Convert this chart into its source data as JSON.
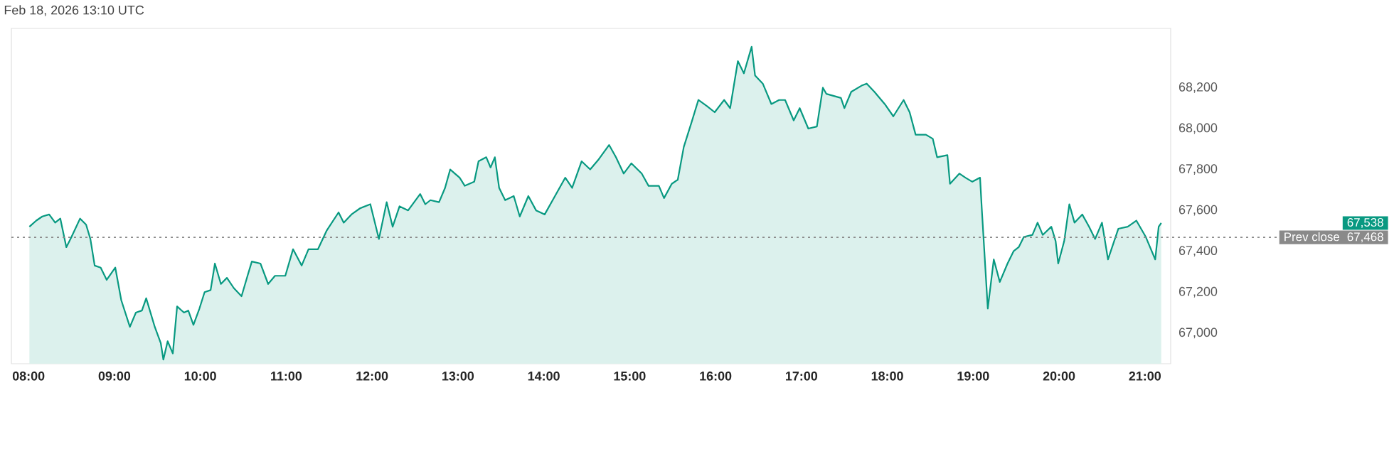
{
  "chart_data": {
    "type": "area",
    "title": "Feb 18, 2026 13:10 UTC",
    "color": "#089981",
    "x": [
      8.01,
      8.09,
      8.16,
      8.24,
      8.31,
      8.37,
      8.44,
      8.5,
      8.6,
      8.67,
      8.72,
      8.77,
      8.84,
      8.91,
      9.01,
      9.08,
      9.18,
      9.25,
      9.32,
      9.37,
      9.47,
      9.54,
      9.57,
      9.62,
      9.68,
      9.73,
      9.81,
      9.86,
      9.92,
      9.99,
      10.05,
      10.12,
      10.17,
      10.24,
      10.31,
      10.39,
      10.48,
      10.55,
      10.6,
      10.7,
      10.79,
      10.87,
      10.99,
      11.08,
      11.18,
      11.26,
      11.37,
      11.47,
      11.61,
      11.67,
      11.76,
      11.86,
      11.98,
      12.08,
      12.17,
      12.24,
      12.32,
      12.42,
      12.56,
      12.62,
      12.68,
      12.78,
      12.85,
      12.91,
      13.02,
      13.08,
      13.19,
      13.24,
      13.33,
      13.38,
      13.43,
      13.48,
      13.55,
      13.65,
      13.72,
      13.82,
      13.91,
      14.01,
      14.13,
      14.25,
      14.33,
      14.44,
      14.54,
      14.64,
      14.76,
      14.84,
      14.93,
      15.02,
      15.14,
      15.22,
      15.34,
      15.4,
      15.49,
      15.56,
      15.63,
      15.72,
      15.8,
      15.9,
      15.99,
      16.1,
      16.17,
      16.26,
      16.33,
      16.42,
      16.46,
      16.55,
      16.65,
      16.74,
      16.81,
      16.91,
      16.98,
      17.08,
      17.18,
      17.25,
      17.29,
      17.46,
      17.5,
      17.58,
      17.7,
      17.76,
      17.85,
      17.97,
      18.07,
      18.19,
      18.26,
      18.33,
      18.45,
      18.53,
      18.58,
      18.7,
      18.73,
      18.84,
      18.91,
      18.99,
      19.08,
      19.1,
      19.17,
      19.24,
      19.31,
      19.4,
      19.47,
      19.53,
      19.59,
      19.69,
      19.75,
      19.81,
      19.91,
      19.96,
      19.99,
      20.06,
      20.12,
      20.18,
      20.27,
      20.35,
      20.42,
      20.5,
      20.57,
      20.69,
      20.8,
      20.9,
      21.01,
      21.12,
      21.16,
      21.19
    ],
    "values": [
      67520,
      67550,
      67570,
      67580,
      67540,
      67560,
      67420,
      67470,
      67560,
      67530,
      67460,
      67330,
      67320,
      67260,
      67320,
      67160,
      67030,
      67100,
      67110,
      67170,
      67030,
      66950,
      66870,
      66960,
      66900,
      67130,
      67100,
      67110,
      67040,
      67120,
      67200,
      67210,
      67340,
      67240,
      67270,
      67220,
      67180,
      67280,
      67350,
      67340,
      67240,
      67280,
      67280,
      67410,
      67330,
      67410,
      67410,
      67500,
      67590,
      67540,
      67580,
      67610,
      67630,
      67460,
      67640,
      67520,
      67620,
      67600,
      67680,
      67630,
      67650,
      67640,
      67710,
      67800,
      67760,
      67720,
      67740,
      67840,
      67860,
      67810,
      67860,
      67710,
      67650,
      67670,
      67570,
      67670,
      67600,
      67580,
      67670,
      67760,
      67710,
      67840,
      67800,
      67850,
      67920,
      67860,
      67780,
      67830,
      67780,
      67720,
      67720,
      67660,
      67730,
      67750,
      67910,
      68030,
      68140,
      68110,
      68080,
      68140,
      68100,
      68330,
      68270,
      68400,
      68260,
      68220,
      68120,
      68140,
      68140,
      68040,
      68100,
      68000,
      68010,
      68200,
      68170,
      68150,
      68100,
      68180,
      68210,
      68220,
      68180,
      68120,
      68060,
      68140,
      68080,
      67970,
      67970,
      67950,
      67860,
      67870,
      67730,
      67780,
      67760,
      67740,
      67760,
      67610,
      67120,
      67360,
      67250,
      67340,
      67400,
      67420,
      67470,
      67480,
      67540,
      67480,
      67520,
      67450,
      67340,
      67450,
      67630,
      67540,
      67580,
      67520,
      67460,
      67540,
      67360,
      67510,
      67520,
      67550,
      67470,
      67360,
      67520,
      67538
    ],
    "xlim": [
      7.8,
      21.3
    ],
    "ylim": [
      66850,
      68490
    ],
    "xticks": [
      {
        "value": 8,
        "label": "08:00"
      },
      {
        "value": 9,
        "label": "09:00"
      },
      {
        "value": 10,
        "label": "10:00"
      },
      {
        "value": 11,
        "label": "11:00"
      },
      {
        "value": 12,
        "label": "12:00"
      },
      {
        "value": 13,
        "label": "13:00"
      },
      {
        "value": 14,
        "label": "14:00"
      },
      {
        "value": 15,
        "label": "15:00"
      },
      {
        "value": 16,
        "label": "16:00"
      },
      {
        "value": 17,
        "label": "17:00"
      },
      {
        "value": 18,
        "label": "18:00"
      },
      {
        "value": 19,
        "label": "19:00"
      },
      {
        "value": 20,
        "label": "20:00"
      },
      {
        "value": 21,
        "label": "21:00"
      }
    ],
    "yticks": [
      {
        "value": 67000,
        "label": "67,000"
      },
      {
        "value": 67200,
        "label": "67,200"
      },
      {
        "value": 67400,
        "label": "67,400"
      },
      {
        "value": 67600,
        "label": "67,600"
      },
      {
        "value": 67800,
        "label": "67,800"
      },
      {
        "value": 68000,
        "label": "68,000"
      },
      {
        "value": 68200,
        "label": "68,200"
      }
    ],
    "ref_lines": [
      {
        "axis": "y",
        "value": 67468,
        "label": "Prev close",
        "color": "#8a8a8a",
        "line_style": "dotted"
      }
    ],
    "annotations": [
      "67,538",
      "67,468"
    ]
  }
}
